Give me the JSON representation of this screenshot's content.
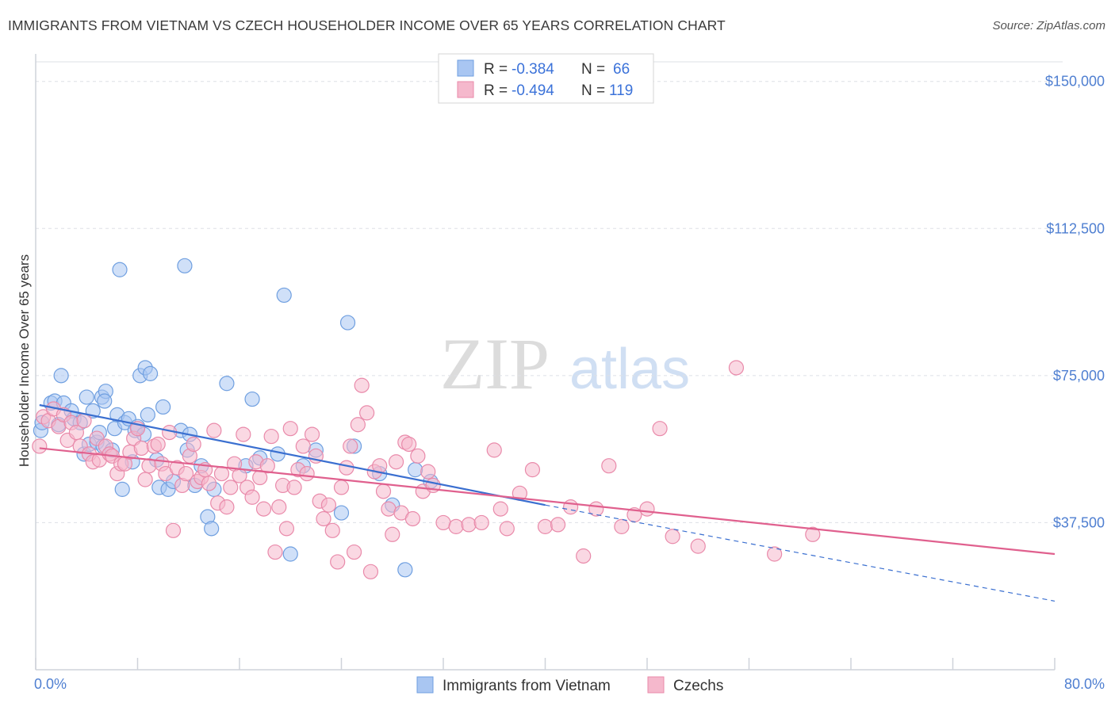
{
  "title": "IMMIGRANTS FROM VIETNAM VS CZECH HOUSEHOLDER INCOME OVER 65 YEARS CORRELATION CHART",
  "source": "Source: ZipAtlas.com",
  "watermark": {
    "zip": "ZIP",
    "atlas": "atlas"
  },
  "colors": {
    "blue_fill": "#a9c6f2",
    "blue_stroke": "#6f9fe0",
    "blue_line": "#3a6fd0",
    "pink_fill": "#f5b8cc",
    "pink_stroke": "#e98aaa",
    "pink_line": "#e0608e",
    "grid": "#dde0e6",
    "tick_text": "#4f7fd1"
  },
  "legend": {
    "rows": [
      {
        "r_label": "R = ",
        "r_value": "-0.384",
        "n_label": "N = ",
        "n_value": "66"
      },
      {
        "r_label": "R = ",
        "r_value": "-0.494",
        "n_label": "N = ",
        "n_value": "119"
      }
    ]
  },
  "bottom_legend": [
    "Immigrants from Vietnam",
    "Czechs"
  ],
  "chart_data": {
    "type": "scatter",
    "xlabel": "",
    "ylabel": "Householder Income Over 65 years",
    "xlim": [
      0,
      80
    ],
    "ylim": [
      0,
      155000
    ],
    "x_tick_labels": [
      "0.0%",
      "80.0%"
    ],
    "y_ticks": [
      37500,
      75000,
      112500,
      150000
    ],
    "y_tick_labels": [
      "$37,500",
      "$75,000",
      "$112,500",
      "$150,000"
    ],
    "grid": true,
    "legend_position": "top-center",
    "series": [
      {
        "name": "Immigrants from Vietnam",
        "trend": {
          "x0": 0.3,
          "y0": 67500,
          "x1": 40,
          "y1": 42000,
          "dash_to_x": 80,
          "dash_to_y": 17500
        },
        "points": [
          [
            0.4,
            61000
          ],
          [
            0.5,
            63000
          ],
          [
            1.2,
            68000
          ],
          [
            1.5,
            68500
          ],
          [
            1.8,
            62500
          ],
          [
            2.0,
            75000
          ],
          [
            2.2,
            68000
          ],
          [
            2.8,
            66000
          ],
          [
            3.0,
            64000
          ],
          [
            3.5,
            63000
          ],
          [
            3.8,
            55000
          ],
          [
            4.0,
            69500
          ],
          [
            4.2,
            57500
          ],
          [
            4.5,
            66000
          ],
          [
            4.8,
            58000
          ],
          [
            5.0,
            60500
          ],
          [
            5.2,
            69500
          ],
          [
            5.5,
            71000
          ],
          [
            5.3,
            57000
          ],
          [
            5.4,
            68500
          ],
          [
            6.0,
            56000
          ],
          [
            6.2,
            61500
          ],
          [
            6.4,
            65000
          ],
          [
            6.6,
            102000
          ],
          [
            6.8,
            46000
          ],
          [
            7.0,
            63000
          ],
          [
            7.3,
            64000
          ],
          [
            7.6,
            53000
          ],
          [
            7.8,
            61000
          ],
          [
            8.0,
            62000
          ],
          [
            8.2,
            75000
          ],
          [
            8.5,
            60000
          ],
          [
            8.6,
            77000
          ],
          [
            8.8,
            65000
          ],
          [
            9.0,
            75500
          ],
          [
            9.5,
            53500
          ],
          [
            9.7,
            46500
          ],
          [
            10.0,
            67000
          ],
          [
            10.4,
            46000
          ],
          [
            10.8,
            48000
          ],
          [
            11.4,
            61000
          ],
          [
            11.7,
            103000
          ],
          [
            11.9,
            56000
          ],
          [
            12.1,
            60000
          ],
          [
            12.5,
            47000
          ],
          [
            13.0,
            52000
          ],
          [
            13.5,
            39000
          ],
          [
            13.8,
            36000
          ],
          [
            14.0,
            46000
          ],
          [
            15.0,
            73000
          ],
          [
            16.5,
            52000
          ],
          [
            17.0,
            69000
          ],
          [
            17.6,
            54000
          ],
          [
            19.0,
            55000
          ],
          [
            19.5,
            95500
          ],
          [
            20.0,
            29500
          ],
          [
            21.0,
            52000
          ],
          [
            22.0,
            56000
          ],
          [
            24.0,
            40000
          ],
          [
            24.5,
            88500
          ],
          [
            25.0,
            57000
          ],
          [
            27.0,
            50000
          ],
          [
            28.0,
            42000
          ],
          [
            29.0,
            25500
          ],
          [
            29.8,
            51000
          ],
          [
            31.0,
            48000
          ]
        ]
      },
      {
        "name": "Czechs",
        "trend": {
          "x0": 0.3,
          "y0": 56500,
          "x1": 80,
          "y1": 29500
        },
        "points": [
          [
            0.3,
            57000
          ],
          [
            0.6,
            64500
          ],
          [
            1.0,
            63500
          ],
          [
            1.4,
            66500
          ],
          [
            1.8,
            62000
          ],
          [
            2.2,
            65000
          ],
          [
            2.5,
            58500
          ],
          [
            2.8,
            63000
          ],
          [
            3.2,
            60500
          ],
          [
            3.5,
            57000
          ],
          [
            3.8,
            63500
          ],
          [
            4.2,
            55000
          ],
          [
            4.5,
            53000
          ],
          [
            4.8,
            59000
          ],
          [
            5.0,
            53500
          ],
          [
            5.5,
            57000
          ],
          [
            5.8,
            55000
          ],
          [
            6.0,
            54500
          ],
          [
            6.4,
            50000
          ],
          [
            6.7,
            52500
          ],
          [
            7.0,
            52500
          ],
          [
            7.4,
            55500
          ],
          [
            7.7,
            59000
          ],
          [
            8.0,
            61500
          ],
          [
            8.3,
            56500
          ],
          [
            8.6,
            48500
          ],
          [
            8.9,
            52000
          ],
          [
            9.3,
            57000
          ],
          [
            9.6,
            57500
          ],
          [
            9.9,
            52500
          ],
          [
            10.2,
            50000
          ],
          [
            10.5,
            60500
          ],
          [
            10.8,
            35500
          ],
          [
            11.1,
            51500
          ],
          [
            11.5,
            47000
          ],
          [
            11.8,
            50000
          ],
          [
            12.1,
            54500
          ],
          [
            12.4,
            57500
          ],
          [
            12.7,
            48000
          ],
          [
            13.0,
            49000
          ],
          [
            13.3,
            51000
          ],
          [
            13.6,
            47500
          ],
          [
            14.0,
            61000
          ],
          [
            14.3,
            42500
          ],
          [
            14.6,
            50000
          ],
          [
            15.0,
            41500
          ],
          [
            15.3,
            46500
          ],
          [
            15.6,
            52500
          ],
          [
            16.0,
            49500
          ],
          [
            16.3,
            60000
          ],
          [
            16.6,
            46500
          ],
          [
            17.0,
            44000
          ],
          [
            17.3,
            53000
          ],
          [
            17.6,
            49000
          ],
          [
            17.9,
            41000
          ],
          [
            18.2,
            52000
          ],
          [
            18.5,
            59500
          ],
          [
            18.8,
            30000
          ],
          [
            19.1,
            41500
          ],
          [
            19.4,
            47000
          ],
          [
            19.7,
            36000
          ],
          [
            20.0,
            61500
          ],
          [
            20.3,
            46500
          ],
          [
            20.6,
            51000
          ],
          [
            21.0,
            57000
          ],
          [
            21.3,
            50000
          ],
          [
            21.7,
            60000
          ],
          [
            22.0,
            54500
          ],
          [
            22.3,
            43000
          ],
          [
            22.6,
            38500
          ],
          [
            23.0,
            42000
          ],
          [
            23.3,
            35500
          ],
          [
            23.7,
            27500
          ],
          [
            24.0,
            46500
          ],
          [
            24.4,
            51500
          ],
          [
            24.7,
            57000
          ],
          [
            25.0,
            30000
          ],
          [
            25.3,
            62500
          ],
          [
            25.6,
            72500
          ],
          [
            26.0,
            65500
          ],
          [
            26.3,
            25000
          ],
          [
            26.6,
            50500
          ],
          [
            27.0,
            52000
          ],
          [
            27.3,
            45500
          ],
          [
            27.7,
            41000
          ],
          [
            28.0,
            34500
          ],
          [
            28.3,
            53000
          ],
          [
            28.7,
            40000
          ],
          [
            29.0,
            58000
          ],
          [
            29.3,
            57500
          ],
          [
            29.6,
            38500
          ],
          [
            30.0,
            54500
          ],
          [
            30.4,
            45500
          ],
          [
            30.8,
            50500
          ],
          [
            31.2,
            47000
          ],
          [
            32.0,
            37500
          ],
          [
            33.0,
            36500
          ],
          [
            34.0,
            37000
          ],
          [
            35.0,
            37500
          ],
          [
            36.0,
            56000
          ],
          [
            37.0,
            36000
          ],
          [
            38.0,
            45000
          ],
          [
            39.0,
            51000
          ],
          [
            40.0,
            36500
          ],
          [
            41.0,
            37000
          ],
          [
            42.0,
            41500
          ],
          [
            43.0,
            29000
          ],
          [
            44.0,
            41000
          ],
          [
            45.0,
            52000
          ],
          [
            46.0,
            36500
          ],
          [
            47.0,
            39500
          ],
          [
            48.0,
            41000
          ],
          [
            49.0,
            61500
          ],
          [
            50.0,
            34000
          ],
          [
            52.0,
            31500
          ],
          [
            55.0,
            77000
          ],
          [
            58.0,
            29500
          ],
          [
            61.0,
            34500
          ],
          [
            36.5,
            41000
          ]
        ]
      }
    ]
  }
}
